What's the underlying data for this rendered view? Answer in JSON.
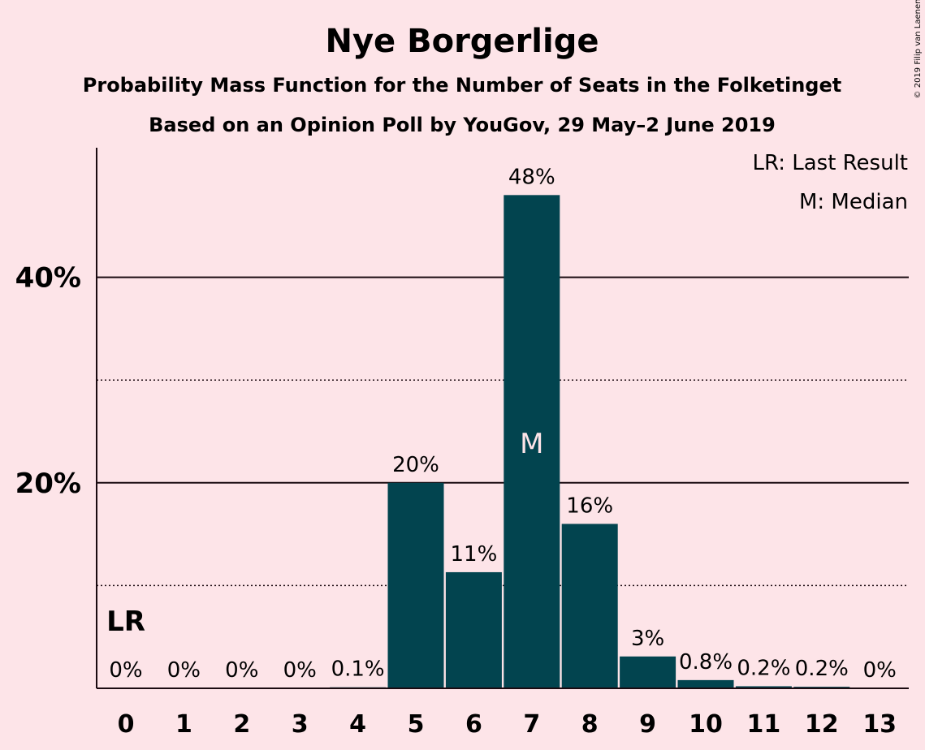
{
  "copyright": "© 2019 Filip van Laenen",
  "chart_data": {
    "type": "bar",
    "title": "Nye Borgerlige",
    "subtitle": "Probability Mass Function for the Number of Seats in the Folketinget",
    "subtitle2": "Based on an Opinion Poll by YouGov, 29 May–2 June 2019",
    "categories": [
      "0",
      "1",
      "2",
      "3",
      "4",
      "5",
      "6",
      "7",
      "8",
      "9",
      "10",
      "11",
      "12",
      "13"
    ],
    "values": [
      0,
      0,
      0,
      0,
      0.1,
      20,
      11.3,
      48,
      16,
      3.1,
      0.8,
      0.2,
      0.15,
      0
    ],
    "data_labels": [
      "0%",
      "0%",
      "0%",
      "0%",
      "0.1%",
      "20%",
      "11%",
      "48%",
      "16%",
      "3%",
      "0.8%",
      "0.2%",
      "0.2%",
      "0%"
    ],
    "ylim": [
      0,
      52
    ],
    "yticks": [
      {
        "value": 20,
        "label": "20%"
      },
      {
        "value": 40,
        "label": "40%"
      }
    ],
    "minor_gridlines": [
      10,
      30
    ],
    "legend": [
      "LR: Last Result",
      "M: Median"
    ],
    "legend_position": "top-right",
    "last_result": {
      "category": "0",
      "label": "LR"
    },
    "median": {
      "category": "7",
      "label": "M"
    },
    "colors": {
      "background": "#FDE4E8",
      "bar": "#02444F",
      "text": "#1a0a10",
      "median_text": "#FDE4E8"
    }
  }
}
